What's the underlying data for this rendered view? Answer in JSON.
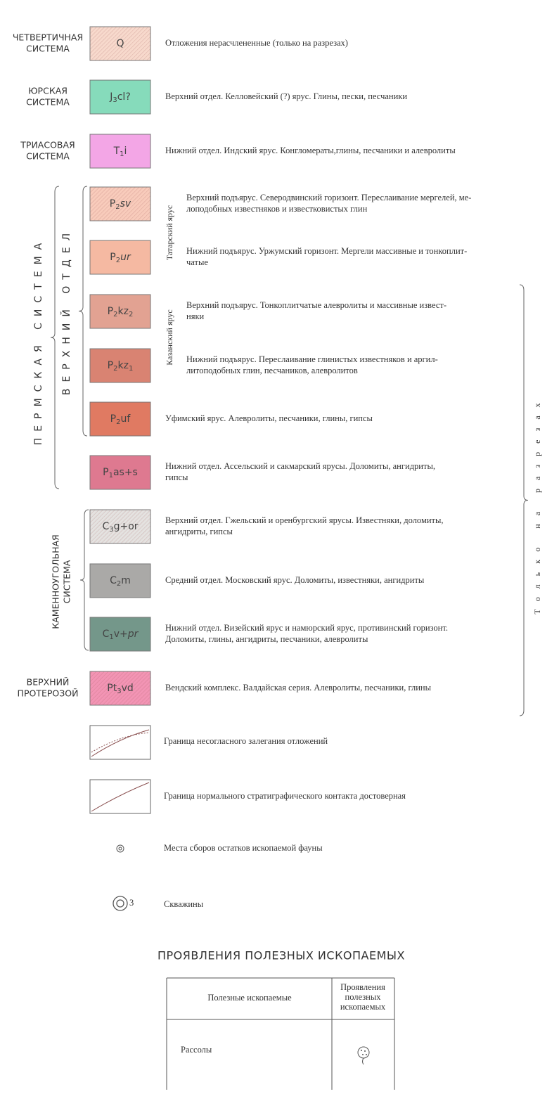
{
  "legend": {
    "items": [
      {
        "label": [
          "ЧЕТВЕРТИЧНАЯ",
          "СИСТЕМА"
        ],
        "code": [
          {
            "text": "Q"
          }
        ],
        "color": "#f7d9cc",
        "hatch": true,
        "description": [
          "Отложения нерасчлененные (только на разрезах)"
        ]
      },
      {
        "label": [
          "ЮРСКАЯ",
          "СИСТЕМА"
        ],
        "code": [
          {
            "text": "J"
          },
          {
            "text": "3",
            "sub": true
          },
          {
            "text": "cl?"
          }
        ],
        "color": "#86dbbb",
        "hatch": false,
        "description": [
          "Верхний отдел. Келловейский (?) ярус. Глины, пески, песчаники"
        ]
      },
      {
        "label": [
          "ТРИАСОВАЯ",
          "СИСТЕМА"
        ],
        "code": [
          {
            "text": "T"
          },
          {
            "text": "1",
            "sub": true
          },
          {
            "text": "i"
          }
        ],
        "color": "#f3a6e6",
        "hatch": false,
        "description": [
          "Нижний отдел. Индский ярус. Конгломераты,глины, песчаники и алевролиты"
        ]
      },
      {
        "label": [],
        "code": [
          {
            "text": "P"
          },
          {
            "text": "2",
            "sub": true
          },
          {
            "text": "sv",
            "italic": true
          }
        ],
        "color": "#f8cbbb",
        "hatch": true,
        "description": [
          "Верхний подъярус. Северодвинский горизонт. Переслаивание мергелей, ме-",
          "лоподобных известняков и известковистых глин"
        ]
      },
      {
        "label": [],
        "code": [
          {
            "text": "P"
          },
          {
            "text": "2",
            "sub": true
          },
          {
            "text": "ur",
            "italic": true
          }
        ],
        "color": "#f5b9a2",
        "hatch": false,
        "description": [
          "Нижний подъярус. Уржумский горизонт. Мергели массивные и тонкоплит-",
          "чатые"
        ]
      },
      {
        "label": [],
        "code": [
          {
            "text": "P"
          },
          {
            "text": "2",
            "sub": true
          },
          {
            "text": "kz"
          },
          {
            "text": "2",
            "sub": true
          }
        ],
        "color": "#e2a292",
        "hatch": false,
        "description": [
          "Верхний подъярус. Тонкоплитчатые алевролиты и массивные извест-",
          "няки"
        ]
      },
      {
        "label": [],
        "code": [
          {
            "text": "P"
          },
          {
            "text": "2",
            "sub": true
          },
          {
            "text": "kz"
          },
          {
            "text": "1",
            "sub": true
          }
        ],
        "color": "#d98372",
        "hatch": false,
        "description": [
          "Нижний подъярус. Переслаивание глинистых известняков и аргил-",
          "литоподобных глин, песчаников, алевролитов"
        ]
      },
      {
        "label": [],
        "code": [
          {
            "text": "P"
          },
          {
            "text": "2",
            "sub": true
          },
          {
            "text": "uf"
          }
        ],
        "color": "#e07a62",
        "hatch": false,
        "description": [
          "Уфимский ярус. Алевролиты, песчаники, глины, гипсы"
        ]
      },
      {
        "label": [],
        "code": [
          {
            "text": "P"
          },
          {
            "text": "1",
            "sub": true
          },
          {
            "text": "as+s"
          }
        ],
        "color": "#de7990",
        "hatch": false,
        "description": [
          "Нижний отдел. Ассельский  и сакмарский ярусы. Доломиты, ангидриты,",
          "гипсы"
        ]
      },
      {
        "label": [],
        "code": [
          {
            "text": "C"
          },
          {
            "text": "3",
            "sub": true
          },
          {
            "text": "g+or"
          }
        ],
        "color": "#e4e2e0",
        "hatch": true,
        "description": [
          "Верхний отдел. Гжельский и оренбургский ярусы. Известняки, доломиты,",
          "ангидриты, гипсы"
        ]
      },
      {
        "label": [],
        "code": [
          {
            "text": "C"
          },
          {
            "text": "2",
            "sub": true
          },
          {
            "text": "m"
          }
        ],
        "color": "#aaa9a7",
        "hatch": false,
        "description": [
          "Средний отдел.  Московский ярус. Доломиты, известняки, ангидриты"
        ]
      },
      {
        "label": [],
        "code": [
          {
            "text": "C"
          },
          {
            "text": "1",
            "sub": true
          },
          {
            "text": "v+"
          },
          {
            "text": "pr",
            "italic": true
          }
        ],
        "color": "#74978a",
        "hatch": false,
        "description": [
          "Нижний отдел. Визейский ярус и намюрский ярус, противинский горизонт.",
          "Доломиты, глины, ангидриты, песчаники, алевролиты"
        ]
      },
      {
        "label": [
          "ВЕРХНИЙ",
          "ПРОТЕРОЗОЙ"
        ],
        "code": [
          {
            "text": "Pt"
          },
          {
            "text": "3",
            "sub": true
          },
          {
            "text": "vd"
          }
        ],
        "color": "#f294b4",
        "hatch": true,
        "description": [
          "Вендский  комплекс. Валдайская серия. Алевролиты, песчаники, глины"
        ]
      }
    ],
    "brackets": [
      {
        "lines": [
          "ПЕРМСКАЯ СИСТЕМА"
        ]
      },
      {
        "lines": [
          "ВЕРХНИЙ ОТДЕЛ"
        ]
      },
      {
        "lines": [
          "Татарский ярус"
        ]
      },
      {
        "lines": [
          "Казанский ярус"
        ]
      },
      {
        "lines": [
          "КАМЕННОУГОЛЬНАЯ",
          "СИСТЕМА"
        ]
      },
      {
        "lines": [
          "Только на разрезах"
        ]
      }
    ],
    "symbols": [
      {
        "description": "Граница несогласного залегания  отложений"
      },
      {
        "description": "Граница нормального стратиграфического контакта достоверная"
      },
      {
        "description": "Места сборов остатков ископаемой фауны"
      },
      {
        "description": "Скважины",
        "number": "3"
      }
    ]
  },
  "minerals": {
    "title": "ПРОЯВЛЕНИЯ ПОЛЕЗНЫХ ИСКОПАЕМЫХ",
    "headers": [
      [
        "Полезные ископаемые"
      ],
      [
        "Проявления",
        "полезных",
        "ископаемых"
      ]
    ],
    "rows": [
      [
        "Рассолы"
      ]
    ]
  }
}
